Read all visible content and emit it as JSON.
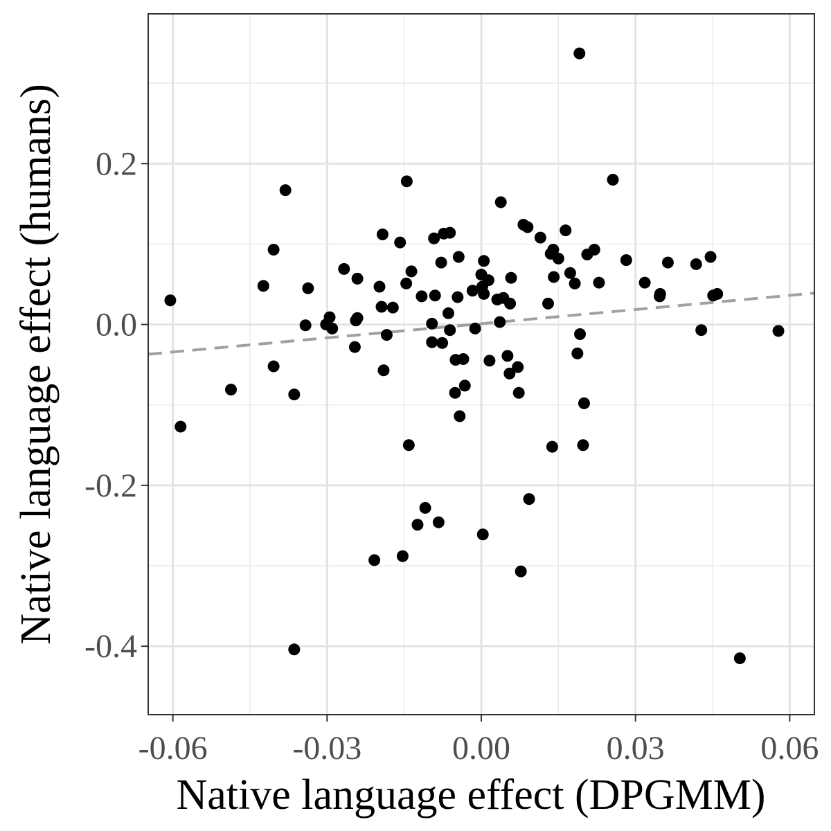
{
  "chart_data": {
    "type": "scatter",
    "xlabel": "Native language effect (DPGMM)",
    "ylabel": "Native language effect (humans)",
    "xlim": [
      -0.0648,
      0.0648
    ],
    "ylim": [
      -0.4851,
      0.3862
    ],
    "x_ticks": [
      -0.06,
      -0.03,
      0.0,
      0.03,
      0.06
    ],
    "x_tick_labels": [
      "-0.06",
      "-0.03",
      "0.00",
      "0.03",
      "0.06"
    ],
    "y_ticks": [
      -0.4,
      -0.2,
      0.0,
      0.2
    ],
    "y_tick_labels": [
      "-0.4",
      "-0.2",
      "0.0",
      "0.2"
    ],
    "grid": true,
    "point_color": "#000000",
    "trend_line": {
      "style": "dashed",
      "color": "#a0a0a0",
      "x": [
        -0.0648,
        0.0648
      ],
      "y": [
        -0.037,
        0.039
      ]
    },
    "points": [
      {
        "x": -0.0605,
        "y": 0.03
      },
      {
        "x": -0.0585,
        "y": -0.127
      },
      {
        "x": -0.0487,
        "y": -0.081
      },
      {
        "x": -0.0424,
        "y": 0.048
      },
      {
        "x": -0.0404,
        "y": 0.093
      },
      {
        "x": -0.0404,
        "y": -0.052
      },
      {
        "x": -0.0381,
        "y": 0.167
      },
      {
        "x": -0.0364,
        "y": -0.087
      },
      {
        "x": -0.0364,
        "y": -0.404
      },
      {
        "x": -0.0342,
        "y": -0.001
      },
      {
        "x": -0.0337,
        "y": 0.045
      },
      {
        "x": -0.0302,
        "y": 0.0
      },
      {
        "x": -0.0295,
        "y": 0.009
      },
      {
        "x": -0.029,
        "y": -0.005
      },
      {
        "x": -0.0267,
        "y": 0.069
      },
      {
        "x": -0.0246,
        "y": -0.028
      },
      {
        "x": -0.0244,
        "y": 0.005
      },
      {
        "x": -0.0241,
        "y": 0.008
      },
      {
        "x": -0.0241,
        "y": 0.057
      },
      {
        "x": -0.0208,
        "y": -0.293
      },
      {
        "x": -0.0198,
        "y": 0.047
      },
      {
        "x": -0.0194,
        "y": 0.022
      },
      {
        "x": -0.0192,
        "y": 0.112
      },
      {
        "x": -0.019,
        "y": -0.057
      },
      {
        "x": -0.0184,
        "y": -0.013
      },
      {
        "x": -0.0172,
        "y": 0.021
      },
      {
        "x": -0.0158,
        "y": 0.102
      },
      {
        "x": -0.0153,
        "y": -0.288
      },
      {
        "x": -0.0146,
        "y": 0.051
      },
      {
        "x": -0.0145,
        "y": 0.178
      },
      {
        "x": -0.0141,
        "y": -0.15
      },
      {
        "x": -0.0136,
        "y": 0.066
      },
      {
        "x": -0.0124,
        "y": -0.249
      },
      {
        "x": -0.0116,
        "y": 0.035
      },
      {
        "x": -0.0109,
        "y": -0.228
      },
      {
        "x": -0.0096,
        "y": 0.001
      },
      {
        "x": -0.0096,
        "y": -0.022
      },
      {
        "x": -0.0092,
        "y": 0.107
      },
      {
        "x": -0.009,
        "y": 0.036
      },
      {
        "x": -0.0083,
        "y": -0.246
      },
      {
        "x": -0.0078,
        "y": 0.077
      },
      {
        "x": -0.0076,
        "y": -0.023
      },
      {
        "x": -0.0073,
        "y": 0.113
      },
      {
        "x": -0.0064,
        "y": 0.014
      },
      {
        "x": -0.0061,
        "y": 0.114
      },
      {
        "x": -0.0061,
        "y": -0.007
      },
      {
        "x": -0.0051,
        "y": -0.085
      },
      {
        "x": -0.005,
        "y": -0.044
      },
      {
        "x": -0.0046,
        "y": 0.034
      },
      {
        "x": -0.0044,
        "y": 0.084
      },
      {
        "x": -0.0042,
        "y": -0.114
      },
      {
        "x": -0.0035,
        "y": -0.043
      },
      {
        "x": -0.0032,
        "y": -0.076
      },
      {
        "x": -0.0017,
        "y": 0.042
      },
      {
        "x": -0.0012,
        "y": -0.005
      },
      {
        "x": 0.0,
        "y": 0.062
      },
      {
        "x": 0.0002,
        "y": 0.047
      },
      {
        "x": 0.0003,
        "y": -0.261
      },
      {
        "x": 0.0005,
        "y": 0.079
      },
      {
        "x": 0.0005,
        "y": 0.038
      },
      {
        "x": 0.0014,
        "y": 0.055
      },
      {
        "x": 0.0016,
        "y": -0.045
      },
      {
        "x": 0.0031,
        "y": 0.031
      },
      {
        "x": 0.0036,
        "y": 0.003
      },
      {
        "x": 0.0038,
        "y": 0.152
      },
      {
        "x": 0.0043,
        "y": 0.033
      },
      {
        "x": 0.0051,
        "y": -0.039
      },
      {
        "x": 0.0055,
        "y": -0.061
      },
      {
        "x": 0.0056,
        "y": 0.026
      },
      {
        "x": 0.0058,
        "y": 0.058
      },
      {
        "x": 0.0071,
        "y": -0.053
      },
      {
        "x": 0.0073,
        "y": -0.085
      },
      {
        "x": 0.0077,
        "y": -0.307
      },
      {
        "x": 0.0082,
        "y": 0.124
      },
      {
        "x": 0.009,
        "y": 0.121
      },
      {
        "x": 0.0093,
        "y": -0.217
      },
      {
        "x": 0.0115,
        "y": 0.108
      },
      {
        "x": 0.013,
        "y": 0.026
      },
      {
        "x": 0.0135,
        "y": 0.088
      },
      {
        "x": 0.0138,
        "y": -0.152
      },
      {
        "x": 0.014,
        "y": 0.093
      },
      {
        "x": 0.0141,
        "y": 0.059
      },
      {
        "x": 0.015,
        "y": 0.082
      },
      {
        "x": 0.0164,
        "y": 0.117
      },
      {
        "x": 0.0173,
        "y": 0.064
      },
      {
        "x": 0.0182,
        "y": 0.051
      },
      {
        "x": 0.0187,
        "y": -0.036
      },
      {
        "x": 0.0191,
        "y": 0.337
      },
      {
        "x": 0.0192,
        "y": -0.012
      },
      {
        "x": 0.0198,
        "y": -0.15
      },
      {
        "x": 0.02,
        "y": -0.098
      },
      {
        "x": 0.0206,
        "y": 0.087
      },
      {
        "x": 0.022,
        "y": 0.093
      },
      {
        "x": 0.0229,
        "y": 0.052
      },
      {
        "x": 0.0256,
        "y": 0.18
      },
      {
        "x": 0.0282,
        "y": 0.08
      },
      {
        "x": 0.0318,
        "y": 0.052
      },
      {
        "x": 0.0347,
        "y": 0.035
      },
      {
        "x": 0.0348,
        "y": 0.038
      },
      {
        "x": 0.0363,
        "y": 0.077
      },
      {
        "x": 0.0418,
        "y": 0.075
      },
      {
        "x": 0.0428,
        "y": -0.007
      },
      {
        "x": 0.0446,
        "y": 0.084
      },
      {
        "x": 0.0451,
        "y": 0.036
      },
      {
        "x": 0.0459,
        "y": 0.038
      },
      {
        "x": 0.0503,
        "y": -0.415
      },
      {
        "x": 0.0578,
        "y": -0.008
      }
    ]
  }
}
